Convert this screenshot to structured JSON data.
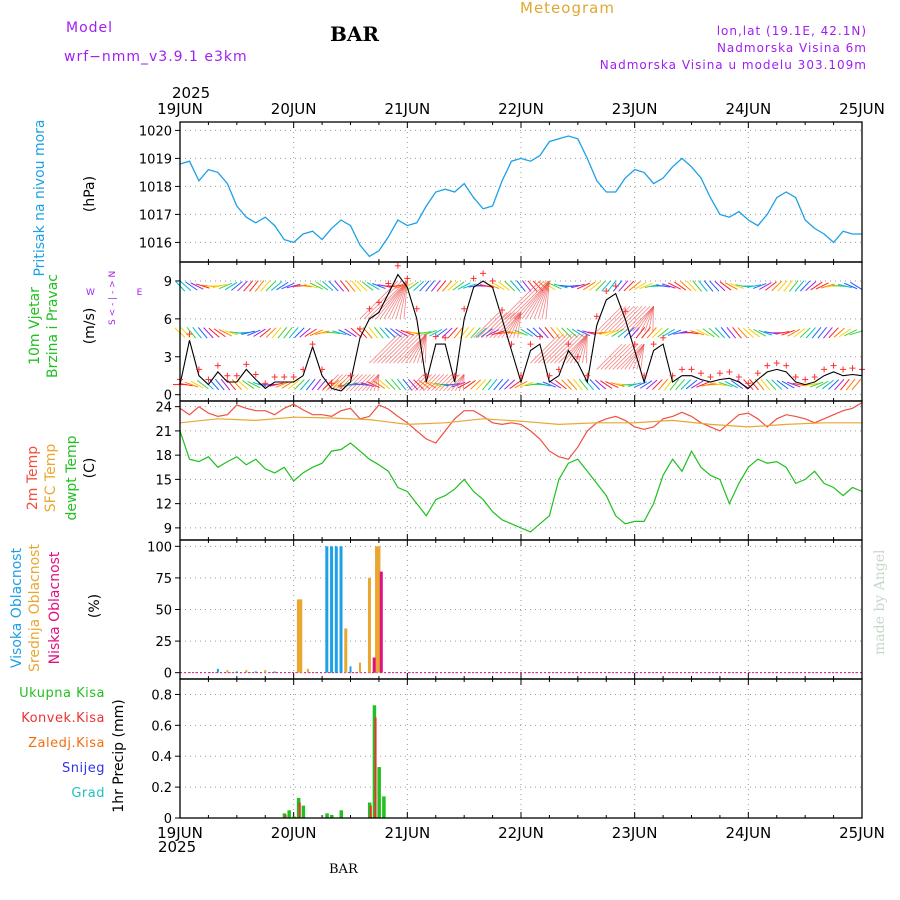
{
  "header": {
    "model_label": "Model",
    "model_name": "wrf−nmm_v3.9.1  e3km",
    "station": "BAR",
    "title": "Meteogram",
    "lonlat": "lon,lat (19.1E, 42.1N)",
    "elevation": "Nadmorska Visina 6m",
    "model_elevation": "Nadmorska Visina u modelu 303.109m"
  },
  "year": "2025",
  "dates": [
    "19JUN",
    "20JUN",
    "21JUN",
    "22JUN",
    "23JUN",
    "24JUN",
    "25JUN"
  ],
  "footer_station": "BAR",
  "watermark": "made by Angel",
  "colors": {
    "pressure": "#1ea0e6",
    "wind_speed": "#000000",
    "wind_gust": "#ff3030",
    "temp2m": "#f05040",
    "sfc_temp": "#e8a830",
    "dewpt": "#20c020",
    "high_cloud": "#1ea0e6",
    "mid_cloud": "#e8a830",
    "low_cloud": "#e01080",
    "total_rain": "#20c020",
    "conv_rain": "#f03030",
    "frozen": "#f07010",
    "snow": "#3030f0",
    "hail": "#20c0c0"
  },
  "panels": {
    "pressure": {
      "label": "Pritisak na nivou mora",
      "unit": "(hPa)",
      "ticks": [
        "1016",
        "1017",
        "1018",
        "1019",
        "1020"
      ]
    },
    "wind": {
      "label1": "10m Vjetar",
      "label2": "Brzina i Pravac",
      "unit": "(m/s)",
      "ticks": [
        "0",
        "3",
        "6",
        "9"
      ],
      "compass_n": "N",
      "compass_s": "S",
      "compass_w": "W",
      "compass_e": "E",
      "compass_sym": "< - | - >"
    },
    "temp": {
      "label1": "2m Temp",
      "label2": "SFC Temp",
      "label3": "dewpt Temp",
      "unit": "(C)",
      "ticks": [
        "9",
        "12",
        "15",
        "18",
        "21",
        "24"
      ]
    },
    "cloud": {
      "label1": "Visoka Oblacnost",
      "label2": "Srednja Oblacnost",
      "label3": "Niska Oblacnost",
      "unit": "(%)",
      "ticks": [
        "0",
        "25",
        "50",
        "75",
        "100"
      ]
    },
    "precip": {
      "unit": "1hr Precip (mm)",
      "ticks": [
        "0",
        "0.2",
        "0.4",
        "0.6",
        "0.8"
      ],
      "legend": [
        "Ukupna Kisa",
        "Konvek.Kisa",
        "Zaledj.Kisa",
        "Snijeg",
        "Grad"
      ]
    }
  },
  "chart_data": [
    {
      "type": "line",
      "title": "Pritisak na nivou mora",
      "ylabel": "(hPa)",
      "ylim": [
        1015.3,
        1020.3
      ],
      "xlim": [
        0,
        144
      ],
      "x_unit": "hours from 19JUN 00",
      "series": [
        {
          "name": "Pritisak na nivou mora",
          "x": [
            0,
            2,
            4,
            6,
            8,
            10,
            12,
            14,
            16,
            18,
            20,
            22,
            24,
            26,
            28,
            30,
            32,
            34,
            36,
            38,
            40,
            42,
            44,
            46,
            48,
            50,
            52,
            54,
            56,
            58,
            60,
            62,
            64,
            66,
            68,
            70,
            72,
            74,
            76,
            78,
            80,
            82,
            84,
            86,
            88,
            90,
            92,
            94,
            96,
            98,
            100,
            102,
            104,
            106,
            108,
            110,
            112,
            114,
            116,
            118,
            120,
            122,
            124,
            126,
            128,
            130,
            132,
            134,
            136,
            138,
            140,
            142,
            144
          ],
          "values": [
            1018.8,
            1018.9,
            1018.2,
            1018.6,
            1018.5,
            1018.1,
            1017.3,
            1016.9,
            1016.7,
            1016.9,
            1016.6,
            1016.1,
            1016.0,
            1016.3,
            1016.4,
            1016.1,
            1016.5,
            1016.8,
            1016.6,
            1015.9,
            1015.5,
            1015.7,
            1016.2,
            1016.8,
            1016.6,
            1016.7,
            1017.3,
            1017.8,
            1017.9,
            1017.8,
            1018.1,
            1017.6,
            1017.2,
            1017.3,
            1018.2,
            1018.9,
            1019.0,
            1018.9,
            1019.1,
            1019.6,
            1019.7,
            1019.8,
            1019.7,
            1019.0,
            1018.2,
            1017.8,
            1017.8,
            1018.3,
            1018.6,
            1018.5,
            1018.1,
            1018.3,
            1018.7,
            1019.0,
            1018.7,
            1018.3,
            1017.6,
            1017.0,
            1016.9,
            1017.1,
            1016.8,
            1016.6,
            1017.0,
            1017.6,
            1017.8,
            1017.6,
            1016.8,
            1016.5,
            1016.3,
            1016.0,
            1016.4,
            1016.3,
            1016.3
          ]
        }
      ]
    },
    {
      "type": "line",
      "title": "10m Vjetar Brzina i Pravac",
      "ylabel": "(m/s)",
      "ylim": [
        -0.5,
        10.5
      ],
      "xlim": [
        0,
        144
      ],
      "series": [
        {
          "name": "speed",
          "x": [
            0,
            2,
            4,
            6,
            8,
            10,
            12,
            14,
            16,
            18,
            20,
            22,
            24,
            26,
            28,
            30,
            32,
            34,
            36,
            38,
            40,
            42,
            44,
            46,
            48,
            50,
            52,
            54,
            56,
            58,
            60,
            62,
            64,
            66,
            68,
            70,
            72,
            74,
            76,
            78,
            80,
            82,
            84,
            86,
            88,
            90,
            92,
            94,
            96,
            98,
            100,
            102,
            104,
            106,
            108,
            110,
            112,
            114,
            116,
            118,
            120,
            122,
            124,
            126,
            128,
            130,
            132,
            134,
            136,
            138,
            140,
            142,
            144
          ],
          "values": [
            0.8,
            4.3,
            1.5,
            0.8,
            1.8,
            1.0,
            1.0,
            2.0,
            1.2,
            0.5,
            1.0,
            1.0,
            1.0,
            1.5,
            3.8,
            1.5,
            0.5,
            0.3,
            1.0,
            4.5,
            6.0,
            6.5,
            8.0,
            9.5,
            8.5,
            6.0,
            1.0,
            4.0,
            4.0,
            1.0,
            6.0,
            8.5,
            9.0,
            8.5,
            6.0,
            3.5,
            1.0,
            3.5,
            4.0,
            1.0,
            1.5,
            3.5,
            2.5,
            1.0,
            5.5,
            7.5,
            8.0,
            6.0,
            3.5,
            1.0,
            3.5,
            4.0,
            1.0,
            1.5,
            1.5,
            1.2,
            1.0,
            1.2,
            1.3,
            1.0,
            0.5,
            1.2,
            1.8,
            2.0,
            1.8,
            1.0,
            0.8,
            1.0,
            1.5,
            1.8,
            1.5,
            1.6,
            1.5
          ]
        },
        {
          "name": "gust",
          "x": [
            0,
            2,
            4,
            6,
            8,
            10,
            12,
            14,
            16,
            18,
            20,
            22,
            24,
            26,
            28,
            30,
            32,
            34,
            36,
            38,
            40,
            42,
            44,
            46,
            48,
            50,
            52,
            54,
            56,
            58,
            60,
            62,
            64,
            66,
            68,
            70,
            72,
            74,
            76,
            78,
            80,
            82,
            84,
            86,
            88,
            90,
            92,
            94,
            96,
            98,
            100,
            102,
            104,
            106,
            108,
            110,
            112,
            114,
            116,
            118,
            120,
            122,
            124,
            126,
            128,
            130,
            132,
            134,
            136,
            138,
            140,
            142,
            144
          ],
          "values": [
            1.2,
            4.8,
            2.0,
            1.2,
            2.3,
            1.5,
            1.5,
            2.4,
            1.6,
            0.9,
            1.4,
            1.4,
            1.4,
            2.0,
            4.0,
            2.0,
            0.9,
            0.7,
            1.5,
            5.2,
            6.8,
            7.3,
            8.8,
            10.2,
            9.2,
            6.8,
            1.5,
            4.6,
            4.5,
            1.5,
            6.8,
            9.2,
            9.6,
            9.0,
            6.7,
            4.0,
            1.5,
            4.0,
            4.6,
            1.5,
            2.0,
            4.0,
            3.0,
            1.5,
            6.2,
            8.2,
            8.6,
            6.6,
            4.0,
            1.5,
            4.0,
            4.5,
            1.5,
            2.0,
            2.0,
            1.7,
            1.4,
            1.7,
            1.8,
            1.4,
            0.9,
            1.7,
            2.3,
            2.5,
            2.3,
            1.4,
            1.2,
            1.4,
            2.0,
            2.3,
            2.0,
            2.1,
            2.0
          ]
        }
      ]
    },
    {
      "type": "line",
      "title": "2m Temp / SFC Temp / dewpt Temp",
      "ylabel": "(C)",
      "ylim": [
        7.5,
        24.7
      ],
      "xlim": [
        0,
        144
      ],
      "series": [
        {
          "name": "2m Temp",
          "x": [
            0,
            2,
            4,
            6,
            8,
            10,
            12,
            14,
            16,
            18,
            20,
            22,
            24,
            26,
            28,
            30,
            32,
            34,
            36,
            38,
            40,
            42,
            44,
            46,
            48,
            50,
            52,
            54,
            56,
            58,
            60,
            62,
            64,
            66,
            68,
            70,
            72,
            74,
            76,
            78,
            80,
            82,
            84,
            86,
            88,
            90,
            92,
            94,
            96,
            98,
            100,
            102,
            104,
            106,
            108,
            110,
            112,
            114,
            116,
            118,
            120,
            122,
            124,
            126,
            128,
            130,
            132,
            134,
            136,
            138,
            140,
            142,
            144
          ],
          "values": [
            23.8,
            23.0,
            24.0,
            23.2,
            22.8,
            23.0,
            24.2,
            23.8,
            23.5,
            23.5,
            23.0,
            23.8,
            24.3,
            23.6,
            23.0,
            23.0,
            22.8,
            23.5,
            23.8,
            22.5,
            22.8,
            24.2,
            23.7,
            22.8,
            22.0,
            21.0,
            20.0,
            19.5,
            21.0,
            22.5,
            23.5,
            23.5,
            22.8,
            22.0,
            21.8,
            22.0,
            21.8,
            21.0,
            20.0,
            18.5,
            17.8,
            17.5,
            19.0,
            21.0,
            22.0,
            22.5,
            22.8,
            22.3,
            21.5,
            21.2,
            21.5,
            22.5,
            22.8,
            23.3,
            22.8,
            22.0,
            21.5,
            21.0,
            22.0,
            23.0,
            23.2,
            22.5,
            21.5,
            22.5,
            23.0,
            22.8,
            22.5,
            22.0,
            22.5,
            23.0,
            23.5,
            23.8,
            24.5
          ]
        },
        {
          "name": "SFC Temp",
          "x": [
            0,
            8,
            16,
            24,
            32,
            40,
            48,
            56,
            64,
            72,
            80,
            88,
            96,
            104,
            112,
            120,
            128,
            136,
            144
          ],
          "values": [
            22.0,
            22.5,
            22.3,
            22.7,
            22.6,
            22.4,
            21.8,
            22.0,
            22.5,
            22.2,
            21.8,
            22.0,
            22.0,
            22.3,
            21.8,
            21.5,
            21.8,
            22.0,
            22.0
          ]
        },
        {
          "name": "dewpt Temp",
          "x": [
            0,
            2,
            4,
            6,
            8,
            10,
            12,
            14,
            16,
            18,
            20,
            22,
            24,
            26,
            28,
            30,
            32,
            34,
            36,
            38,
            40,
            42,
            44,
            46,
            48,
            50,
            52,
            54,
            56,
            58,
            60,
            62,
            64,
            66,
            68,
            70,
            72,
            74,
            76,
            78,
            80,
            82,
            84,
            86,
            88,
            90,
            92,
            94,
            96,
            98,
            100,
            102,
            104,
            106,
            108,
            110,
            112,
            114,
            116,
            118,
            120,
            122,
            124,
            126,
            128,
            130,
            132,
            134,
            136,
            138,
            140,
            142,
            144
          ],
          "values": [
            21.0,
            17.5,
            17.2,
            17.8,
            16.5,
            17.2,
            17.8,
            16.8,
            17.5,
            16.3,
            15.8,
            16.5,
            14.8,
            15.8,
            16.5,
            17.0,
            18.5,
            18.7,
            19.5,
            18.5,
            17.5,
            16.8,
            16.0,
            14.0,
            13.5,
            12.0,
            10.5,
            12.5,
            13.0,
            13.8,
            15.0,
            13.5,
            12.5,
            11.0,
            10.0,
            9.5,
            9.0,
            8.5,
            9.5,
            10.5,
            15.0,
            17.0,
            17.5,
            16.0,
            14.5,
            13.0,
            10.5,
            9.5,
            9.8,
            9.8,
            12.0,
            15.5,
            17.5,
            16.0,
            18.5,
            16.5,
            15.5,
            15.0,
            12.0,
            14.5,
            16.5,
            17.5,
            17.0,
            17.2,
            16.5,
            14.5,
            15.0,
            16.0,
            14.5,
            14.0,
            13.0,
            14.0,
            13.5
          ]
        }
      ]
    },
    {
      "type": "bar",
      "title": "Oblacnost",
      "ylabel": "(%)",
      "ylim": [
        -5,
        105
      ],
      "xlim": [
        0,
        144
      ],
      "series": [
        {
          "name": "Visoka Oblacnost",
          "x": [
            31,
            32,
            33,
            34
          ],
          "values": [
            100,
            100,
            100,
            100
          ]
        },
        {
          "name": "Srednja Oblacnost",
          "x": [
            25,
            25.5,
            35,
            40,
            41.5,
            42
          ],
          "values": [
            58,
            58,
            35,
            75,
            100,
            100
          ]
        },
        {
          "name": "Niska Oblacnost",
          "x": [
            41,
            42.5
          ],
          "values": [
            12,
            80
          ]
        }
      ]
    },
    {
      "type": "bar",
      "title": "1hr Precip",
      "ylabel": "1hr Precip (mm)",
      "ylim": [
        0,
        0.9
      ],
      "xlim": [
        0,
        144
      ],
      "series": [
        {
          "name": "Ukupna Kisa",
          "x": [
            22,
            23,
            24,
            25,
            26,
            31,
            32,
            34,
            40,
            41,
            42,
            43
          ],
          "values": [
            0.03,
            0.05,
            0.01,
            0.13,
            0.08,
            0.03,
            0.02,
            0.05,
            0.1,
            0.73,
            0.33,
            0.14
          ]
        },
        {
          "name": "Konvek.Kisa",
          "x": [
            22.4,
            25.4,
            40.4,
            41.4
          ],
          "values": [
            0.02,
            0.1,
            0.08,
            0.65
          ]
        }
      ]
    }
  ]
}
